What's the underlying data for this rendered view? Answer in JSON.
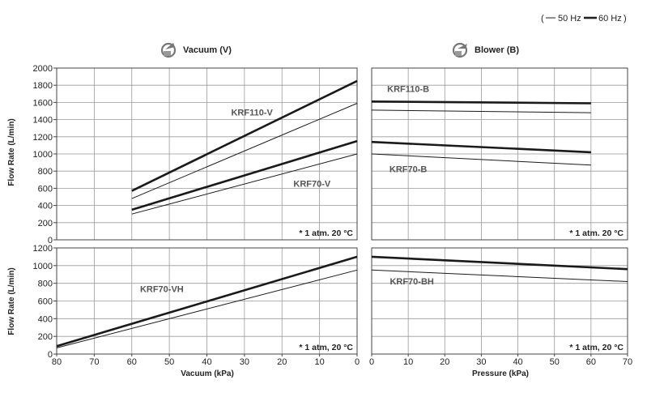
{
  "legend": {
    "open": "(",
    "label_50": "50 Hz",
    "label_60": "60 Hz",
    "close": ")"
  },
  "headers": {
    "vacuum": "Vacuum (V)",
    "blower": "Blower (B)"
  },
  "axis_labels": {
    "ylabel": "Flow Rate (L/min)",
    "xlabel_vacuum": "Vacuum (kPa)",
    "xlabel_pressure": "Pressure (kPa)"
  },
  "colors": {
    "grid": "#9a9a9a",
    "line": "#1a1a1a",
    "label": "#555555"
  },
  "icons": {
    "vacuum": "vacuum-pump-icon",
    "blower": "blower-fan-icon"
  },
  "chart_data": [
    {
      "id": "vacuum-top",
      "type": "line",
      "x_direction": "descending",
      "xlim": [
        80,
        0
      ],
      "ylim": [
        0,
        2000
      ],
      "y_ticks": [
        0,
        200,
        400,
        600,
        800,
        1000,
        1200,
        1400,
        1600,
        1800,
        2000
      ],
      "x_ticks": [],
      "note": "* 1 atm. 20 °C",
      "labels": [
        {
          "text": "KRF110-V",
          "x": 28,
          "y": 1450
        },
        {
          "text": "KRF70-V",
          "x": 12,
          "y": 620
        }
      ],
      "series": [
        {
          "name": "KRF110-V",
          "freq": "60 Hz",
          "x": [
            60,
            0
          ],
          "y": [
            570,
            1850
          ]
        },
        {
          "name": "KRF110-V",
          "freq": "50 Hz",
          "x": [
            60,
            0
          ],
          "y": [
            480,
            1590
          ]
        },
        {
          "name": "KRF70-V",
          "freq": "60 Hz",
          "x": [
            60,
            0
          ],
          "y": [
            350,
            1150
          ]
        },
        {
          "name": "KRF70-V",
          "freq": "50 Hz",
          "x": [
            60,
            0
          ],
          "y": [
            300,
            1000
          ]
        }
      ]
    },
    {
      "id": "blower-top",
      "type": "line",
      "xlim": [
        0,
        70
      ],
      "ylim": [
        0,
        2000
      ],
      "y_ticks": [],
      "x_ticks": [],
      "note": "* 1 atm. 20 °C",
      "labels": [
        {
          "text": "KRF110-B",
          "x": 10,
          "y": 1720
        },
        {
          "text": "KRF70-B",
          "x": 10,
          "y": 790
        }
      ],
      "series": [
        {
          "name": "KRF110-B",
          "freq": "60 Hz",
          "x": [
            0,
            60
          ],
          "y": [
            1610,
            1590
          ]
        },
        {
          "name": "KRF110-B",
          "freq": "50 Hz",
          "x": [
            0,
            60
          ],
          "y": [
            1510,
            1480
          ]
        },
        {
          "name": "KRF70-B",
          "freq": "60 Hz",
          "x": [
            0,
            60
          ],
          "y": [
            1140,
            1020
          ]
        },
        {
          "name": "KRF70-B",
          "freq": "50 Hz",
          "x": [
            0,
            60
          ],
          "y": [
            1000,
            870
          ]
        }
      ]
    },
    {
      "id": "vacuum-bottom",
      "type": "line",
      "x_direction": "descending",
      "xlim": [
        80,
        0
      ],
      "ylim": [
        0,
        1200
      ],
      "y_ticks": [
        0,
        200,
        400,
        600,
        800,
        1000,
        1200
      ],
      "x_ticks": [
        80,
        70,
        60,
        50,
        40,
        30,
        20,
        10,
        0
      ],
      "note": "* 1 atm, 20 °C",
      "labels": [
        {
          "text": "KRF70-VH",
          "x": 52,
          "y": 700
        }
      ],
      "series": [
        {
          "name": "KRF70-VH",
          "freq": "60 Hz",
          "x": [
            80,
            0
          ],
          "y": [
            90,
            1100
          ]
        },
        {
          "name": "KRF70-VH",
          "freq": "50 Hz",
          "x": [
            80,
            0
          ],
          "y": [
            70,
            950
          ]
        }
      ]
    },
    {
      "id": "blower-bottom",
      "type": "line",
      "xlim": [
        0,
        70
      ],
      "ylim": [
        0,
        1200
      ],
      "y_ticks": [],
      "x_ticks": [
        0,
        10,
        20,
        30,
        40,
        50,
        60,
        70
      ],
      "note": "* 1 atm, 20 °C",
      "labels": [
        {
          "text": "KRF70-BH",
          "x": 11,
          "y": 790
        }
      ],
      "series": [
        {
          "name": "KRF70-BH",
          "freq": "60 Hz",
          "x": [
            0,
            70
          ],
          "y": [
            1100,
            960
          ]
        },
        {
          "name": "KRF70-BH",
          "freq": "50 Hz",
          "x": [
            0,
            70
          ],
          "y": [
            950,
            820
          ]
        }
      ]
    }
  ]
}
